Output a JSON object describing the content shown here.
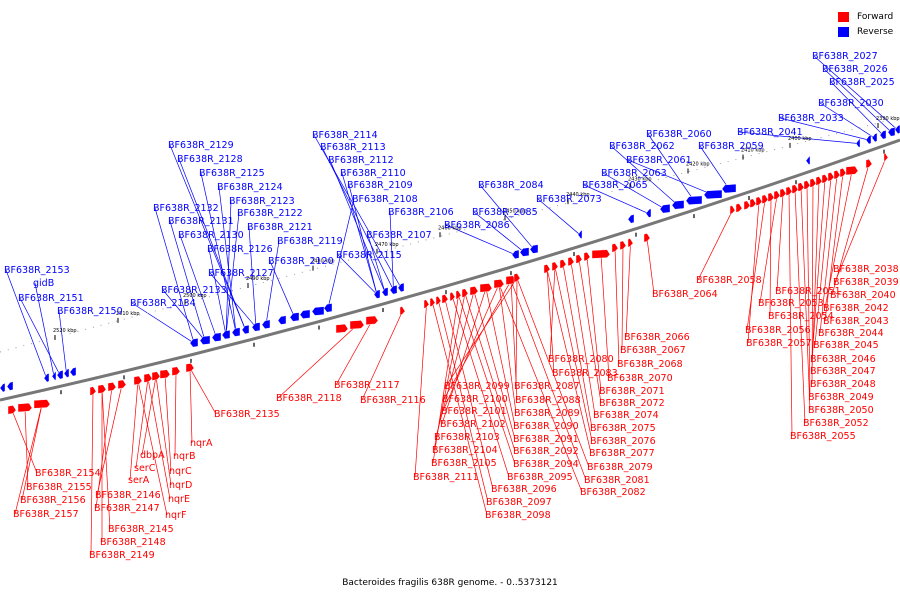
{
  "legend": {
    "forward_label": "Forward",
    "reverse_label": "Reverse",
    "forward_color": "#ff0000",
    "reverse_color": "#0000ff"
  },
  "caption": "Bacteroides fragilis 638R genome. - 0..5373121",
  "scale_ticks": [
    "2390 kbp",
    "2400 kbp",
    "2410 kbp",
    "2420 kbp",
    "2430 kbp",
    "2440 kbp",
    "2450 kbp",
    "2460 kbp",
    "2470 kbp",
    "2480 kbp",
    "2490 kbp",
    "2500 kbp",
    "2510 kbp",
    "2520 kbp"
  ],
  "reverse_genes": [
    "BF638R_2027",
    "BF638R_2026",
    "BF638R_2025",
    "BF638R_2030",
    "BF638R_2033",
    "BF638R_2041",
    "BF638R_2060",
    "BF638R_2062",
    "BF638R_2061",
    "BF638R_2059",
    "BF638R_2063",
    "BF638R_2065",
    "BF638R_2084",
    "BF638R_2073",
    "BF638R_2085",
    "BF638R_2086",
    "BF638R_2114",
    "BF638R_2113",
    "BF638R_2112",
    "BF638R_2110",
    "BF638R_2109",
    "BF638R_2108",
    "BF638R_2106",
    "BF638R_2107",
    "BF638R_2115",
    "BF638R_2129",
    "BF638R_2128",
    "BF638R_2125",
    "BF638R_2124",
    "BF638R_2123",
    "BF638R_2122",
    "BF638R_2132",
    "BF638R_2131",
    "BF638R_2121",
    "BF638R_2130",
    "BF638R_2119",
    "BF638R_2126",
    "BF638R_2120",
    "BF638R_2127",
    "BF638R_2133",
    "BF638R_2134",
    "BF638R_2153",
    "gidB",
    "BF638R_2151",
    "BF638R_2150"
  ],
  "forward_genes": [
    "BF638R_2038",
    "BF638R_2039",
    "BF638R_2040",
    "BF638R_2042",
    "BF638R_2043",
    "BF638R_2044",
    "BF638R_2045",
    "BF638R_2046",
    "BF638R_2047",
    "BF638R_2048",
    "BF638R_2049",
    "BF638R_2050",
    "BF638R_2052",
    "BF638R_2055",
    "BF638R_2058",
    "BF638R_2051",
    "BF638R_2053",
    "BF638R_2054",
    "BF638R_2056",
    "BF638R_2057",
    "BF638R_2064",
    "BF638R_2066",
    "BF638R_2067",
    "BF638R_2068",
    "BF638R_2070",
    "BF638R_2071",
    "BF638R_2072",
    "BF638R_2074",
    "BF638R_2075",
    "BF638R_2076",
    "BF638R_2077",
    "BF638R_2079",
    "BF638R_2081",
    "BF638R_2082",
    "BF638R_2080",
    "BF638R_2083",
    "BF638R_2087",
    "BF638R_2088",
    "BF638R_2089",
    "BF638R_2090",
    "BF638R_2091",
    "BF638R_2092",
    "BF638R_2094",
    "BF638R_2095",
    "BF638R_2096",
    "BF638R_2097",
    "BF638R_2098",
    "BF638R_2099",
    "BF638R_2100",
    "BF638R_2101",
    "BF638R_2102",
    "BF638R_2103",
    "BF638R_2104",
    "BF638R_2105",
    "BF638R_2111",
    "BF638R_2117",
    "BF638R_2118",
    "BF638R_2116",
    "BF638R_2135",
    "nqrA",
    "nqrB",
    "nqrC",
    "nqrD",
    "nqrE",
    "nqrF",
    "dbpA",
    "serC",
    "serA",
    "BF638R_2146",
    "BF638R_2147",
    "BF638R_2145",
    "BF638R_2148",
    "BF638R_2149",
    "BF638R_2154",
    "BF638R_2155",
    "BF638R_2156",
    "BF638R_2157"
  ]
}
